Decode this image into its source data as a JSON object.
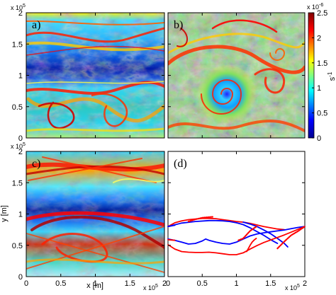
{
  "chart_data": [
    {
      "type": "heatmap",
      "panel": "a)",
      "x_ticks": [
        "0",
        "0.5",
        "1",
        "1.5",
        "2"
      ],
      "y_ticks": [
        "0",
        "0.5",
        "1",
        "1.5",
        "2"
      ],
      "xlim": [
        0,
        200000
      ],
      "ylim": [
        0,
        200000
      ],
      "y_exponent": "x 10",
      "y_exponent_power": "5",
      "show_x_tick_labels": false,
      "show_y_tick_labels": true
    },
    {
      "type": "heatmap",
      "panel": "b)",
      "x_ticks": [
        "0",
        "0.5",
        "1",
        "1.5",
        "2"
      ],
      "y_ticks": [
        "0",
        "0.5",
        "1",
        "1.5",
        "2"
      ],
      "xlim": [
        0,
        200000
      ],
      "ylim": [
        0,
        200000
      ],
      "show_x_tick_labels": false,
      "show_y_tick_labels": false,
      "colorbar": {
        "ticks": [
          "0",
          "0.5",
          "1",
          "1.5",
          "2",
          "2.5"
        ],
        "range": [
          0,
          2.5
        ],
        "exponent": "x 10",
        "exponent_power": "-6",
        "unit": "s",
        "unit_power": "-1",
        "colors": [
          "#00008f",
          "#0000ff",
          "#00ffff",
          "#ffff00",
          "#ff0000",
          "#800000"
        ]
      }
    },
    {
      "type": "heatmap",
      "panel": "c)",
      "x_ticks": [
        "0",
        "0.5",
        "1",
        "1.5",
        "2"
      ],
      "y_ticks": [
        "0",
        "0.5",
        "1",
        "1.5",
        "2"
      ],
      "xlim": [
        0,
        200000
      ],
      "ylim": [
        0,
        200000
      ],
      "xlabel": "x [m]",
      "ylabel": "y [m]",
      "y_exponent": "x 10",
      "y_exponent_power": "5",
      "x_exponent": "x 10",
      "x_exponent_power": "5",
      "show_x_tick_labels": true,
      "show_y_tick_labels": true
    },
    {
      "type": "line",
      "panel": "(d)",
      "x_ticks": [
        "0",
        "0.5",
        "1",
        "1.5",
        "2"
      ],
      "xlim": [
        0,
        200000
      ],
      "ylim": [
        0,
        200000
      ],
      "x_exponent": "x 10",
      "x_exponent_power": "5",
      "show_x_tick_labels": true,
      "show_y_tick_labels": false,
      "series": [
        {
          "color": "#ff0000",
          "style": "solid",
          "x": [
            0,
            10000,
            20000,
            30000,
            40000,
            50000,
            60000,
            70000,
            80000,
            90000,
            100000,
            110000,
            120000,
            130000,
            140000,
            150000,
            160000,
            170000
          ],
          "y": [
            80000,
            86000,
            89000,
            91000,
            92000,
            93000,
            93000,
            92500,
            91000,
            89500,
            88000,
            87000,
            85000,
            82500,
            80000,
            78000,
            76000,
            75000
          ]
        },
        {
          "color": "#0000ff",
          "style": "solid",
          "x": [
            0,
            20000,
            40000,
            60000,
            70000,
            80000,
            90000,
            100000,
            110000,
            120000,
            130000,
            140000,
            150000,
            160000
          ],
          "y": [
            80000,
            85500,
            88000,
            89500,
            89500,
            89000,
            88000,
            86000,
            83000,
            78000,
            72000,
            66000,
            59000,
            53000
          ]
        },
        {
          "color": "#0000ff",
          "style": "solid",
          "x": [
            0,
            10000,
            20000,
            30000,
            40000,
            50000,
            55000,
            60000,
            70000,
            80000,
            90000,
            100000,
            110000,
            120000,
            130000,
            140000,
            150000,
            160000,
            170000,
            180000,
            190000,
            200000
          ],
          "y": [
            60000,
            58000,
            55000,
            52000,
            53000,
            57000,
            60000,
            58000,
            55000,
            53000,
            52000,
            55000,
            60000,
            65000,
            68000,
            70000,
            71500,
            73000,
            74500,
            76500,
            78500,
            80000
          ]
        },
        {
          "color": "#0000ff",
          "style": "solid",
          "x": [
            110000,
            120000,
            130000,
            140000,
            150000,
            160000,
            170000,
            175000
          ],
          "y": [
            87000,
            84000,
            80000,
            74500,
            68500,
            61000,
            53000,
            47500
          ]
        },
        {
          "color": "#ff0000",
          "style": "solid",
          "x": [
            0,
            10000,
            20000,
            30000,
            40000,
            50000,
            60000,
            70000,
            80000,
            90000,
            100000,
            110000,
            120000,
            130000,
            140000,
            150000,
            160000,
            170000,
            180000,
            190000,
            200000
          ],
          "y": [
            51000,
            44000,
            40000,
            39000,
            38500,
            38500,
            39000,
            38000,
            36500,
            35000,
            35000,
            38000,
            44000,
            49500,
            54500,
            58500,
            62500,
            66500,
            71000,
            75500,
            80000
          ]
        },
        {
          "color": "#ff0000",
          "style": "solid",
          "x": [
            115000,
            118000,
            120000,
            123000,
            126000,
            129000
          ],
          "y": [
            40000,
            46000,
            50000,
            55000,
            58500,
            61000
          ]
        },
        {
          "color": "#0000ff",
          "style": "solid",
          "x": [
            0,
            10000
          ],
          "y": [
            80000,
            82000
          ]
        },
        {
          "color": "#ff0000",
          "style": "solid",
          "x": [
            0,
            10000
          ],
          "y": [
            59000,
            58000
          ]
        },
        {
          "color": "#ff0000",
          "style": "dotted",
          "x": [
            30000,
            40000,
            50000,
            60000,
            66000
          ],
          "y": [
            88000,
            91500,
            94000,
            95000,
            95500
          ]
        },
        {
          "color": "#ff0000",
          "style": "dotted",
          "x": [
            103000,
            110000,
            120000,
            130000
          ],
          "y": [
            58000,
            61000,
            73000,
            80500
          ]
        },
        {
          "color": "#ff0000",
          "style": "dotted",
          "x": [
            160000,
            170000,
            180000,
            190000,
            200000
          ],
          "y": [
            45000,
            56000,
            66000,
            72500,
            80000
          ]
        }
      ]
    }
  ]
}
